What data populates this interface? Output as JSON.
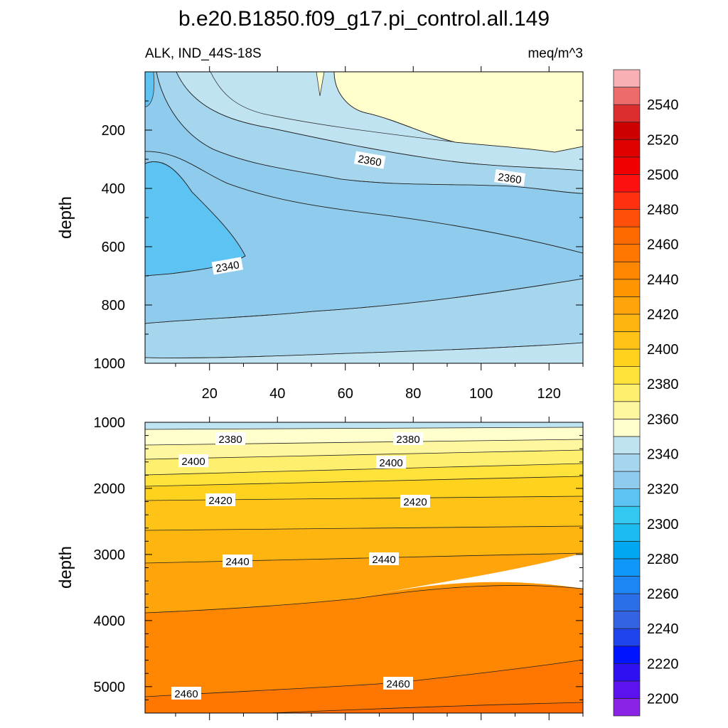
{
  "chart_data": {
    "type": "contour",
    "title": "b.e20.B1850.f09_g17.pi_control.all.149",
    "subtitle_left": "ALK, IND_44S-18S",
    "subtitle_right": "meq/m^3",
    "ylabel": "depth",
    "xlim": [
      1,
      130
    ],
    "xticks": [
      "20",
      "40",
      "60",
      "80",
      "100",
      "120"
    ],
    "upper_panel": {
      "ylim": [
        0,
        1000
      ],
      "yticks": [
        "200",
        "400",
        "600",
        "800",
        "1000"
      ],
      "contour_labels": [
        "2360",
        "2360",
        "2340"
      ]
    },
    "lower_panel": {
      "ylim": [
        1000,
        5400
      ],
      "yticks": [
        "1000",
        "2000",
        "3000",
        "4000",
        "5000"
      ],
      "contour_labels": [
        "2380",
        "2380",
        "2400",
        "2400",
        "2420",
        "2420",
        "2440",
        "2440",
        "2460",
        "2460"
      ]
    },
    "colorbar": {
      "labels": [
        "2200",
        "2220",
        "2240",
        "2260",
        "2280",
        "2300",
        "2320",
        "2340",
        "2360",
        "2380",
        "2400",
        "2420",
        "2440",
        "2460",
        "2480",
        "2500",
        "2520",
        "2540"
      ],
      "colors": [
        "#8a23e6",
        "#5c12ee",
        "#2f10f2",
        "#0014fd",
        "#1f44ed",
        "#3363e0",
        "#2a6fe8",
        "#1c86f5",
        "#0f98fa",
        "#00a8f0",
        "#1cbcf0",
        "#33c8f2",
        "#5cc3f3",
        "#8ecbec",
        "#a6d6ee",
        "#c0e3f2",
        "#ffffcd",
        "#fff7a0",
        "#ffef6e",
        "#ffe33a",
        "#ffd21e",
        "#ffc318",
        "#ffb510",
        "#ffa40a",
        "#ff9500",
        "#ff8600",
        "#ff7700",
        "#ff6a00",
        "#ff4f0a",
        "#ff3010",
        "#ff1010",
        "#f00000",
        "#e00000",
        "#cc0000",
        "#dc2e2e",
        "#ec6c6c",
        "#f8b0b4"
      ]
    }
  }
}
